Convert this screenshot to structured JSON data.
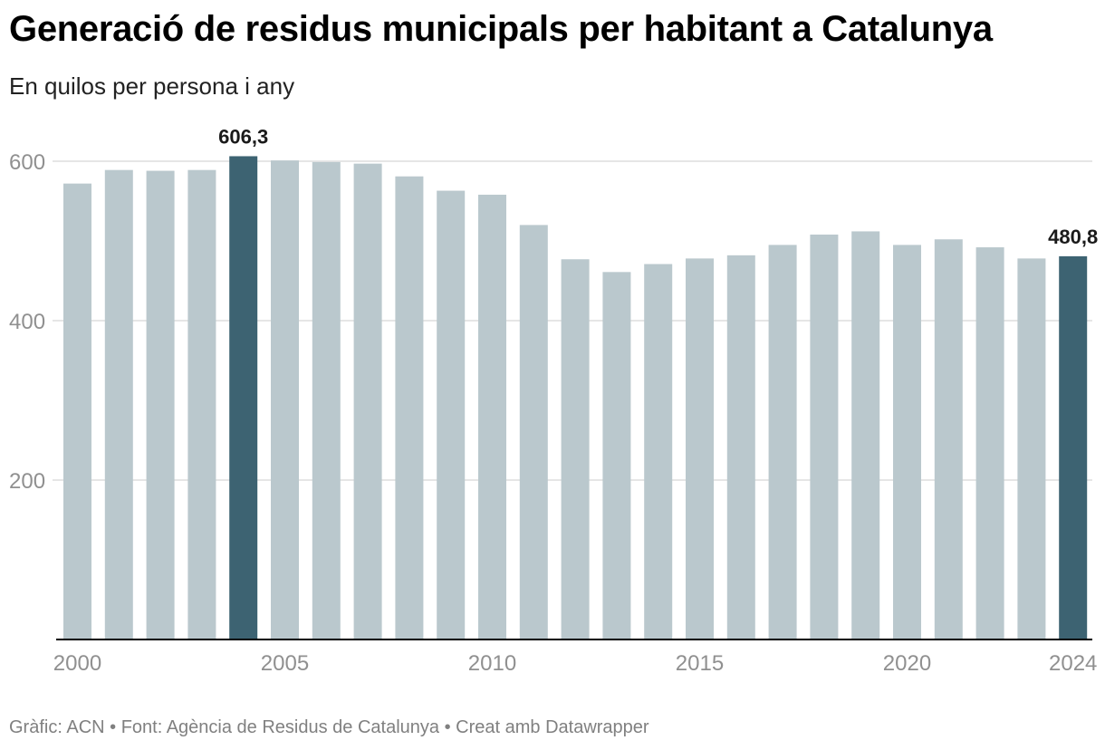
{
  "header": {
    "title": "Generació de residus municipals per habitant a Catalunya",
    "subtitle": "En quilos per persona i any"
  },
  "footer": {
    "text": "Gràfic: ACN • Font: Agència de Residus de Catalunya • Creat amb Datawrapper"
  },
  "colors": {
    "bar": "#bac8cd",
    "highlight": "#3d6372",
    "grid": "#dddddd",
    "axis": "#000000",
    "tick_text": "#909090"
  },
  "chart_data": {
    "type": "bar",
    "categories": [
      "2000",
      "2001",
      "2002",
      "2003",
      "2004",
      "2005",
      "2006",
      "2007",
      "2008",
      "2009",
      "2010",
      "2011",
      "2012",
      "2013",
      "2014",
      "2015",
      "2016",
      "2017",
      "2018",
      "2019",
      "2020",
      "2021",
      "2022",
      "2023",
      "2024"
    ],
    "values": [
      572,
      589,
      588,
      589,
      606.3,
      601,
      599,
      597,
      581,
      563,
      558,
      520,
      477,
      461,
      471,
      478,
      482,
      495,
      508,
      512,
      495,
      502,
      492,
      478,
      480.8
    ],
    "highlighted": [
      "2004",
      "2024"
    ],
    "data_labels": [
      {
        "category": "2004",
        "text": "606,3"
      },
      {
        "category": "2024",
        "text": "480,8"
      }
    ],
    "xticks": [
      "2000",
      "2005",
      "2010",
      "2015",
      "2020",
      "2024"
    ],
    "yticks": [
      200,
      400,
      600
    ],
    "ylim": [
      0,
      640
    ],
    "grid": true,
    "xlabel": "",
    "ylabel": ""
  }
}
